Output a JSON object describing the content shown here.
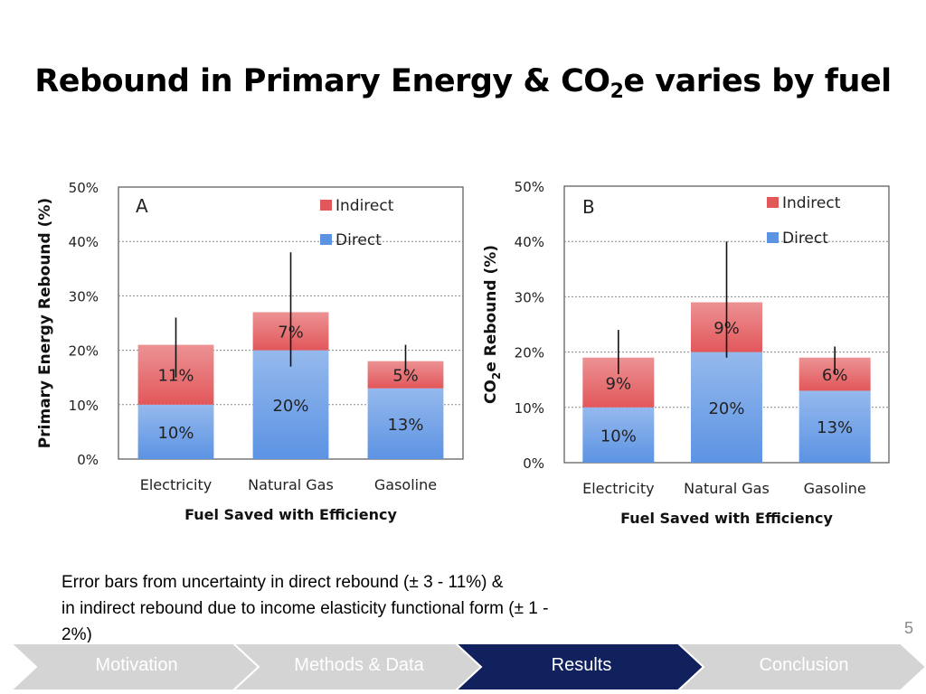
{
  "title": {
    "main": "Rebound in Primary Energy & CO",
    "sub": "2",
    "rest": "e varies by fuel"
  },
  "colors": {
    "indirect": "#e2575a",
    "direct": "#5c93e3",
    "nav_inactive": "#d4d4d4",
    "nav_active": "#11215e"
  },
  "chart_data": [
    {
      "panel": "A",
      "type": "bar",
      "stacked": true,
      "categories": [
        "Electricity",
        "Natural Gas",
        "Gasoline"
      ],
      "series": [
        {
          "name": "Direct",
          "values": [
            10,
            20,
            13
          ],
          "labels": [
            "10%",
            "20%",
            "13%"
          ]
        },
        {
          "name": "Indirect",
          "values": [
            11,
            7,
            5
          ],
          "labels": [
            "11%",
            "7%",
            "5%"
          ]
        }
      ],
      "error_bars": [
        [
          15,
          26
        ],
        [
          17,
          38
        ],
        [
          16,
          21
        ]
      ],
      "ylabel": "Primary Energy Rebound (%)",
      "xlabel": "Fuel Saved with Efficiency",
      "ylim": [
        0,
        50
      ],
      "yticks": [
        "0%",
        "10%",
        "20%",
        "30%",
        "40%",
        "50%"
      ],
      "grid": true,
      "legend": "top-right"
    },
    {
      "panel": "B",
      "type": "bar",
      "stacked": true,
      "categories": [
        "Electricity",
        "Natural Gas",
        "Gasoline"
      ],
      "series": [
        {
          "name": "Direct",
          "values": [
            10,
            20,
            13
          ],
          "labels": [
            "10%",
            "20%",
            "13%"
          ]
        },
        {
          "name": "Indirect",
          "values": [
            9,
            9,
            6
          ],
          "labels": [
            "9%",
            "9%",
            "6%"
          ]
        }
      ],
      "error_bars": [
        [
          16,
          24
        ],
        [
          19,
          40
        ],
        [
          16,
          21
        ]
      ],
      "ylabel": "CO2e Rebound (%)",
      "ylabel_parts": [
        "CO",
        "2",
        "e Rebound (%)"
      ],
      "xlabel": "Fuel Saved with Efficiency",
      "ylim": [
        0,
        50
      ],
      "yticks": [
        "0%",
        "10%",
        "20%",
        "30%",
        "40%",
        "50%"
      ],
      "grid": true,
      "legend": "top-right"
    }
  ],
  "note": {
    "line1": "Error bars from uncertainty in direct rebound (± 3 - 11%) &",
    "line2": "in indirect rebound due to income elasticity functional form (± 1 -",
    "line3": "2%)"
  },
  "page_number": "5",
  "nav": {
    "items": [
      {
        "label": "Motivation",
        "active": false
      },
      {
        "label": "Methods & Data",
        "active": false
      },
      {
        "label": "Results",
        "active": true
      },
      {
        "label": "Conclusion",
        "active": false
      }
    ]
  }
}
